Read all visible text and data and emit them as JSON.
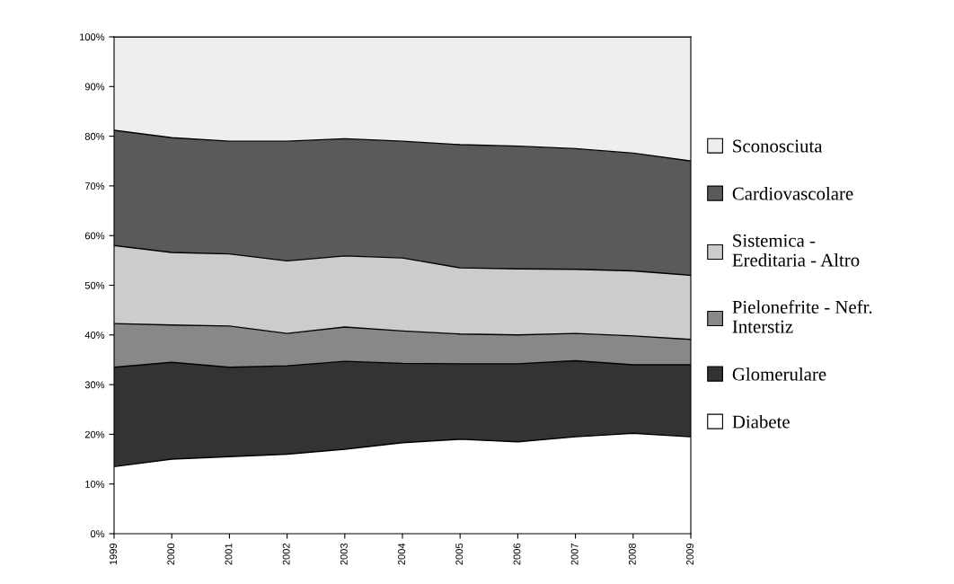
{
  "chart_data": {
    "type": "area",
    "stacked": true,
    "categories": [
      "1999",
      "2000",
      "2001",
      "2002",
      "2003",
      "2004",
      "2005",
      "2006",
      "2007",
      "2008",
      "2009"
    ],
    "series": [
      {
        "name": "Diabete",
        "color": "#ffffff",
        "values": [
          13.5,
          15,
          15.5,
          16,
          17,
          18.3,
          19,
          18.5,
          19.5,
          20.2,
          19.5
        ]
      },
      {
        "name": "Glomerulare",
        "color": "#333333",
        "values": [
          20,
          19.5,
          18,
          17.8,
          17.7,
          16,
          15.2,
          15.7,
          15.3,
          13.8,
          14.5
        ]
      },
      {
        "name": "Pielonefrite - Nefr.\nInterstiz",
        "color": "#888888",
        "values": [
          8.8,
          7.5,
          8.3,
          6.5,
          6.9,
          6.5,
          6,
          5.8,
          5.5,
          5.8,
          5.1
        ]
      },
      {
        "name": "Sistemica -\nEreditaria - Altro",
        "color": "#cccccc",
        "values": [
          15.7,
          14.6,
          14.5,
          14.6,
          14.3,
          14.7,
          13.3,
          13.3,
          12.9,
          13.1,
          12.9
        ]
      },
      {
        "name": "Cardiovascolare",
        "color": "#5a5a5a",
        "values": [
          23.2,
          23.1,
          22.7,
          24.1,
          23.6,
          23.5,
          24.8,
          24.7,
          24.3,
          23.7,
          23
        ]
      },
      {
        "name": "Sconosciuta",
        "color": "#eeeeee",
        "values": [
          18.8,
          20.3,
          21,
          21,
          20.5,
          21,
          21.7,
          22,
          22.5,
          23.4,
          25
        ]
      }
    ],
    "ylim": [
      0,
      100
    ],
    "yticks": [
      {
        "value": 0,
        "label": "0%"
      },
      {
        "value": 10,
        "label": "10%"
      },
      {
        "value": 20,
        "label": "20%"
      },
      {
        "value": 30,
        "label": "30%"
      },
      {
        "value": 40,
        "label": "40%"
      },
      {
        "value": 50,
        "label": "50%"
      },
      {
        "value": 60,
        "label": "60%"
      },
      {
        "value": 70,
        "label": "70%"
      },
      {
        "value": 80,
        "label": "80%"
      },
      {
        "value": 90,
        "label": "90%"
      },
      {
        "value": 100,
        "label": "100%"
      }
    ],
    "grid": false,
    "legend": "right"
  }
}
